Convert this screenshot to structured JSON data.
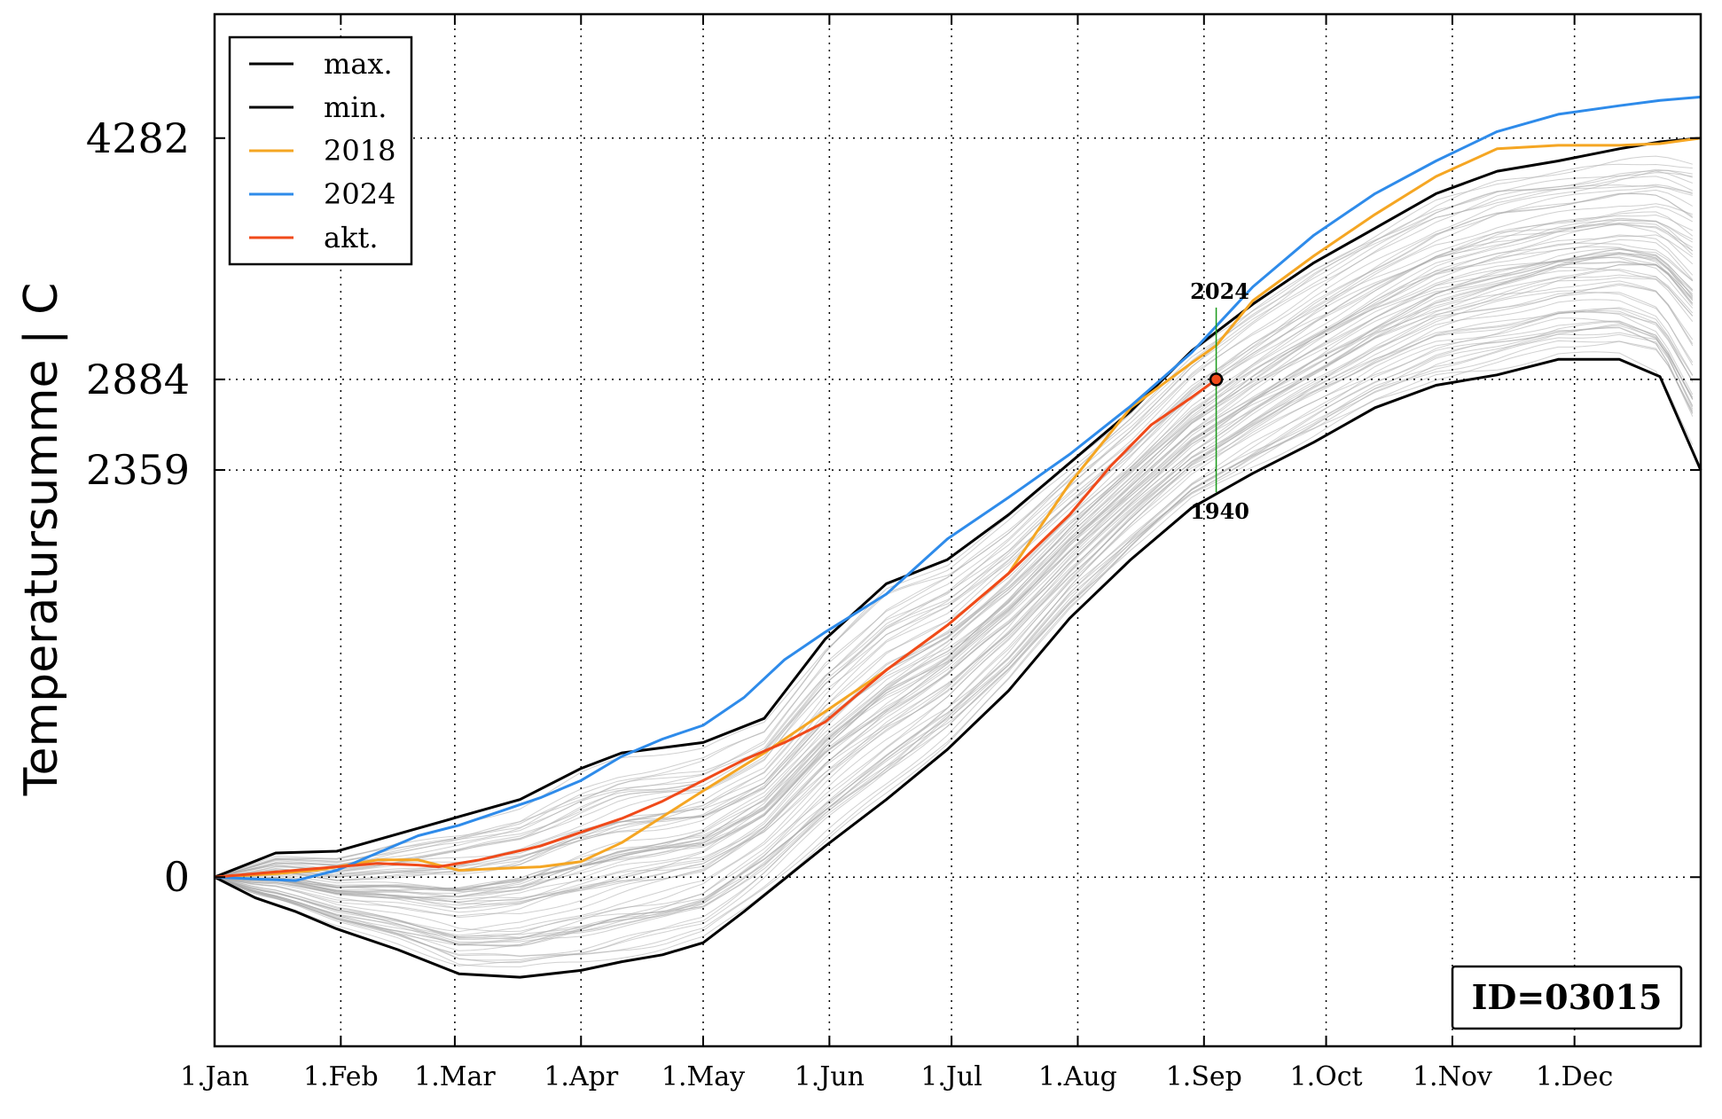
{
  "chart_data": {
    "type": "line",
    "xlabel": "",
    "ylabel": "Temperatursumme | C",
    "x_domain": [
      0,
      365
    ],
    "ylim": [
      -980,
      5000
    ],
    "grid": true,
    "legend_position": "top-left",
    "x_ticks": [
      {
        "day": 0,
        "label": "1.Jan"
      },
      {
        "day": 31,
        "label": "1.Feb"
      },
      {
        "day": 59,
        "label": "1.Mar"
      },
      {
        "day": 90,
        "label": "1.Apr"
      },
      {
        "day": 120,
        "label": "1.May"
      },
      {
        "day": 151,
        "label": "1.Jun"
      },
      {
        "day": 181,
        "label": "1.Jul"
      },
      {
        "day": 212,
        "label": "1.Aug"
      },
      {
        "day": 243,
        "label": "1.Sep"
      },
      {
        "day": 273,
        "label": "1.Oct"
      },
      {
        "day": 304,
        "label": "1.Nov"
      },
      {
        "day": 334,
        "label": "1.Dec"
      }
    ],
    "y_ticks": [
      {
        "value": 0,
        "label": "0"
      },
      {
        "value": 2359,
        "label": "2359"
      },
      {
        "value": 2884,
        "label": "2884"
      },
      {
        "value": 4282,
        "label": "4282"
      }
    ],
    "series": [
      {
        "name": "max.",
        "color": "#000000",
        "x": [
          0,
          15,
          30,
          45,
          60,
          75,
          90,
          100,
          120,
          135,
          150,
          165,
          180,
          195,
          210,
          225,
          240,
          255,
          270,
          285,
          300,
          315,
          330,
          345,
          355,
          365
        ],
        "y": [
          0,
          140,
          150,
          250,
          350,
          450,
          630,
          720,
          780,
          920,
          1380,
          1700,
          1840,
          2100,
          2400,
          2700,
          3050,
          3320,
          3560,
          3760,
          3960,
          4090,
          4150,
          4220,
          4260,
          4282
        ]
      },
      {
        "name": "min.",
        "color": "#000000",
        "x": [
          0,
          10,
          20,
          30,
          45,
          60,
          75,
          90,
          100,
          110,
          120,
          130,
          150,
          165,
          180,
          195,
          210,
          225,
          240,
          255,
          270,
          285,
          300,
          315,
          330,
          345,
          355,
          365
        ],
        "y": [
          0,
          -120,
          -200,
          -300,
          -420,
          -560,
          -580,
          -540,
          -490,
          -450,
          -380,
          -200,
          180,
          450,
          740,
          1080,
          1500,
          1840,
          2140,
          2340,
          2520,
          2720,
          2850,
          2910,
          3000,
          3000,
          2900,
          2359
        ]
      },
      {
        "name": "2018",
        "color": "#f5a623",
        "x": [
          0,
          15,
          25,
          40,
          50,
          60,
          70,
          80,
          90,
          100,
          110,
          120,
          135,
          150,
          165,
          180,
          195,
          210,
          225,
          240,
          246,
          255,
          270,
          285,
          300,
          315,
          330,
          345,
          355,
          365
        ],
        "y": [
          0,
          20,
          40,
          100,
          100,
          40,
          50,
          60,
          90,
          200,
          350,
          500,
          720,
          960,
          1200,
          1460,
          1760,
          2280,
          2720,
          2980,
          3080,
          3340,
          3600,
          3840,
          4060,
          4220,
          4240,
          4240,
          4250,
          4282
        ]
      },
      {
        "name": "2024",
        "color": "#2e8bea",
        "x": [
          0,
          10,
          20,
          30,
          40,
          50,
          60,
          70,
          80,
          90,
          100,
          110,
          120,
          130,
          140,
          150,
          165,
          180,
          195,
          210,
          225,
          240,
          255,
          270,
          285,
          300,
          315,
          330,
          345,
          355,
          365
        ],
        "y": [
          0,
          -10,
          -20,
          40,
          140,
          240,
          300,
          380,
          460,
          560,
          700,
          800,
          880,
          1040,
          1260,
          1420,
          1640,
          1960,
          2200,
          2450,
          2730,
          3040,
          3420,
          3720,
          3960,
          4150,
          4320,
          4420,
          4470,
          4500,
          4520
        ]
      },
      {
        "name": "akt.",
        "color": "#f04a1a",
        "x": [
          0,
          15,
          25,
          40,
          50,
          55,
          65,
          80,
          90,
          100,
          110,
          120,
          130,
          140,
          150,
          165,
          180,
          195,
          210,
          220,
          230,
          240,
          246
        ],
        "y": [
          0,
          30,
          50,
          80,
          70,
          60,
          100,
          180,
          260,
          340,
          440,
          560,
          680,
          780,
          900,
          1200,
          1460,
          1760,
          2100,
          2380,
          2620,
          2780,
          2884
        ]
      }
    ],
    "annotations": [
      {
        "text": "2024",
        "x": 246,
        "y": 3300,
        "position": "above"
      },
      {
        "text": "1940",
        "x": 246,
        "y": 2230,
        "position": "below"
      }
    ],
    "current_point": {
      "x": 246,
      "y": 2884
    },
    "station_id": "ID=03015"
  }
}
